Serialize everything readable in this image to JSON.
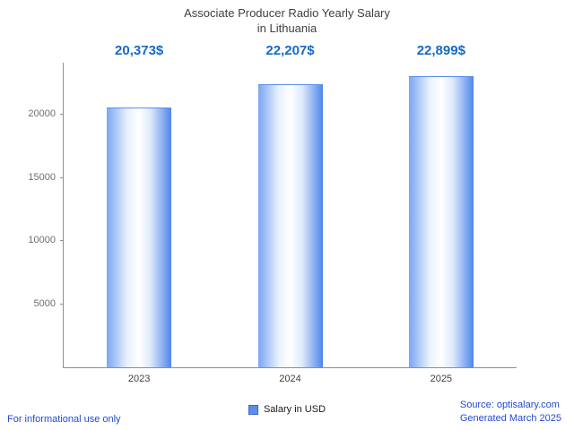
{
  "title": {
    "line1": "Associate Producer Radio Yearly Salary",
    "line2": "in Lithuania"
  },
  "chart_data": {
    "type": "bar",
    "title": "Associate Producer Radio Yearly Salary in Lithuania",
    "categories": [
      "2023",
      "2024",
      "2025"
    ],
    "values": [
      20373,
      22207,
      22899
    ],
    "value_labels": [
      "20,373$",
      "22,207$",
      "22,899$"
    ],
    "series_name": "Salary in USD",
    "xlabel": "",
    "ylabel": "",
    "ylim": [
      0,
      24000
    ],
    "yticks": [
      5000,
      10000,
      15000,
      20000
    ],
    "grid": false,
    "legend_position": "bottom"
  },
  "legend": {
    "label": "Salary in USD"
  },
  "footer": {
    "left": "For informational use only",
    "source": "Source: optisalary.com",
    "generated": "Generated March 2025"
  },
  "colors": {
    "bar_edge_left": "#7aa6f2",
    "bar_mid": "#ffffff",
    "bar_edge_right": "#4f86ea",
    "value_text": "#1569c7",
    "footer_text": "#2149d4",
    "axis": "#8f8f8f"
  }
}
